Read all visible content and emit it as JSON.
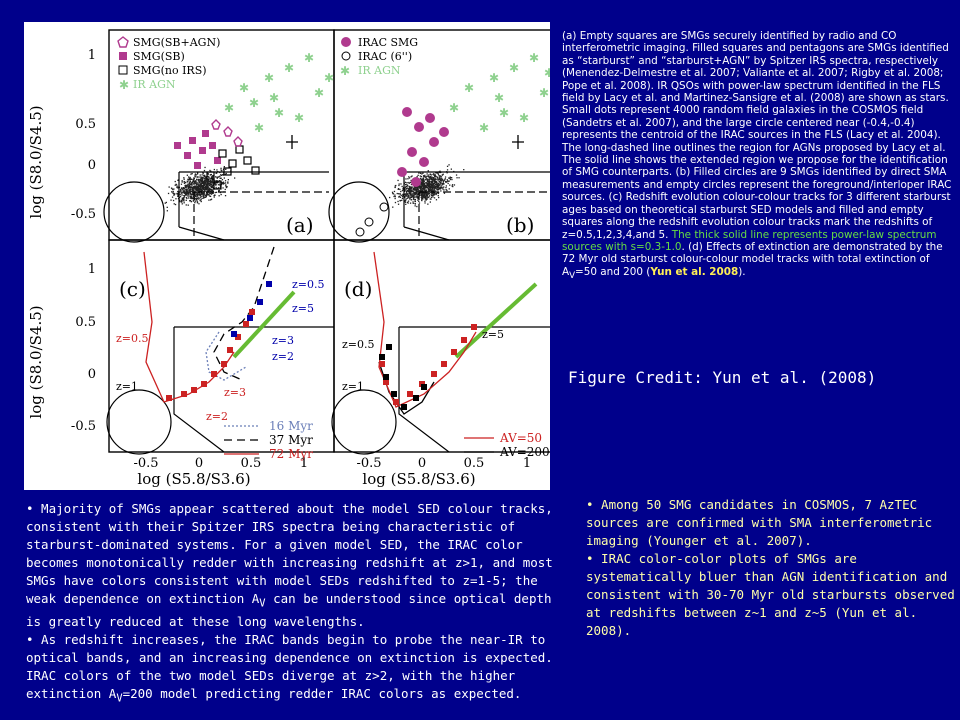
{
  "figure": {
    "ylabel_top": "log (S8.0/S4.5)",
    "ylabel_bottom": "log (S8.0/S4.5)",
    "xlabel_left": "log (S5.8/S3.6)",
    "xlabel_right": "log (S5.8/S3.6)",
    "y_ticks_top": [
      "1",
      "0.5",
      "0",
      "-0.5"
    ],
    "y_ticks_bottom": [
      "1",
      "0.5",
      "0",
      "-0.5"
    ],
    "x_ticks": [
      "-0.5",
      "0",
      "0.5",
      "1"
    ],
    "panel_a": {
      "tag": "(a)",
      "legend": [
        "SMG(SB+AGN)",
        "SMG(SB)",
        "SMG(no IRS)",
        "IR AGN"
      ]
    },
    "panel_b": {
      "tag": "(b)",
      "legend": [
        "IRAC SMG",
        "IRAC (6'')",
        "IR AGN"
      ]
    },
    "panel_c": {
      "tag": "(c)",
      "labels": [
        "z=0.5",
        "z=5",
        "z=3",
        "z=2",
        "z=0.5",
        "z=1",
        "z=3",
        "z=2"
      ],
      "legend": [
        "16 Myr",
        "37 Myr",
        "72 Myr"
      ]
    },
    "panel_d": {
      "tag": "(d)",
      "labels": [
        "z=5",
        "z=0.5",
        "z=1"
      ],
      "legend": [
        "AV=50",
        "AV=200"
      ]
    },
    "colors": {
      "background": "#00008b",
      "sb_agn": "#b03a8e",
      "agn": "#8fd18f",
      "track": "#cc2222",
      "powerlaw": "#66bb33"
    }
  },
  "caption": {
    "part1": "(a) Empty squares are SMGs securely identified by radio and CO interferometric imaging. Filled squares and pentagons are SMGs identified as “starburst” and “starburst+AGN” by Spitzer IRS spectra, respectively (Menendez-Delmestre et al. 2007; Valiante et al. 2007; Rigby et al. 2008; Pope et al. 2008). IR QSOs with power-law spectrum identified in the FLS field by Lacy et al. and Martinez-Sansigre et al. (2008) are shown as stars. Small dots represent 4000 random field galaxies in the COSMOS field (Sandetrs et al. 2007), and the large circle centered near (-0.4,-0.4) represents the centroid of the IRAC sources in the FLS (Lacy et al. 2004). The long-dashed line outlines the region for AGNs proposed by Lacy et al. The solid line shows the extended region we propose for the identification of SMG counterparts. (b) Filled circles are 9 SMGs identified by direct SMA measurements and empty circles represent the foreground/interloper IRAC sources. (c) Redshift evolution colour-colour tracks for 3 different starburst ages based on theoretical starburst SED models and filled and empty squares along the redshift evolution colour tracks mark the redshifts of z=0.5,1,2,3,4,and 5.",
    "part2": " The thick solid line represents power-law spectrum sources with s=0.3-1.0",
    "part3": ". (d) Effects of extinction are demonstrated by the 72 Myr old starburst colour-colour model tracks with total extinction of A",
    "part3_sub": "V",
    "part4": "=50 and 200 (",
    "part5": "Yun et al. 2008",
    "part6": ")."
  },
  "credit": "Figure Credit: Yun et al. (2008)",
  "left_text": {
    "b1_pre": "• Majority of SMGs appear scattered about the model SED colour tracks, consistent with their Spitzer IRS spectra being characteristic of starburst-dominated systems. For a given model SED, the IRAC color becomes monotonically redder with increasing redshift at z>1, and most SMGs have colors consistent with model SEDs redshifted to z=1-5; the weak dependence on extinction A",
    "b1_sub": "V",
    "b1_post": " can be understood since optical depth is greatly reduced at these long wavelengths.",
    "b2_pre": "• As redshift increases, the IRAC bands begin to probe the near-IR to optical bands, and an increasing dependence on extinction is expected. IRAC colors of the two model SEDs diverge at z>2, with the higher extinction A",
    "b2_sub": "V",
    "b2_post": "=200 model predicting redder IRAC colors as expected."
  },
  "right_text": {
    "b1": "• Among 50 SMG candidates in COSMOS, 7 AzTEC sources are confirmed with SMA interferometric imaging (Younger et al. 2007).",
    "b2": "• IRAC color-color plots of SMGs are systematically bluer than AGN identification and consistent with 30-70 Myr old starbursts observed at redshifts between z~1 and z~5 (Yun et al. 2008)."
  }
}
